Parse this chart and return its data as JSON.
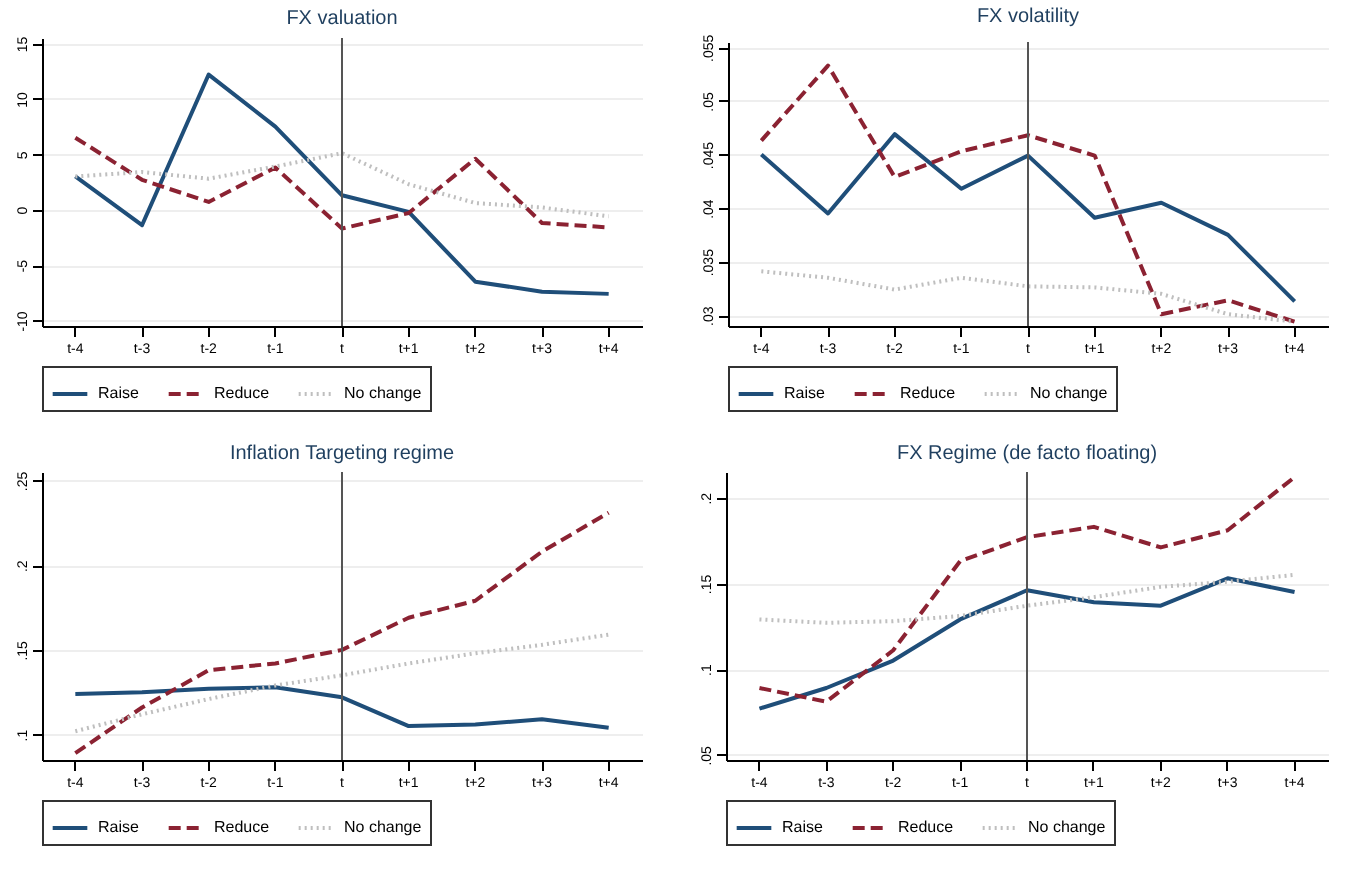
{
  "chart_data": [
    {
      "type": "line",
      "title": "FX valuation",
      "categories": [
        "t-4",
        "t-3",
        "t-2",
        "t-1",
        "t",
        "t+1",
        "t+2",
        "t+3",
        "t+4"
      ],
      "ylim": [
        -10.5,
        15.5
      ],
      "yticks": [
        -10,
        -5,
        0,
        5,
        10,
        15
      ],
      "grid": "y",
      "legend": "bottom",
      "ref_lines": [
        {
          "axis": "x",
          "value": "t",
          "color": "#555555"
        }
      ],
      "series": [
        {
          "name": "Raise",
          "color": "#1f4e79",
          "line_style": "solid",
          "values": [
            3.0,
            -1.4,
            12.2,
            7.5,
            1.3,
            -0.2,
            -6.5,
            -7.4,
            -7.6
          ]
        },
        {
          "name": "Reduce",
          "color": "#8b2232",
          "line_style": "dashed",
          "values": [
            6.5,
            2.7,
            0.7,
            3.8,
            -1.7,
            -0.3,
            4.6,
            -1.2,
            -1.6
          ]
        },
        {
          "name": "No change",
          "color": "#bfbfbf",
          "line_style": "dotted",
          "values": [
            3.0,
            3.4,
            2.8,
            3.9,
            5.1,
            2.3,
            0.6,
            0.2,
            -0.6
          ]
        }
      ]
    },
    {
      "type": "line",
      "title": "FX volatility",
      "categories": [
        "t-4",
        "t-3",
        "t-2",
        "t-1",
        "t",
        "t+1",
        "t+2",
        "t+3",
        "t+4"
      ],
      "ylim": [
        0.029,
        0.0555
      ],
      "yticks": [
        {
          "value": 0.03,
          "label": ".03"
        },
        {
          "value": 0.035,
          "label": ".035"
        },
        {
          "value": 0.04,
          "label": ".04"
        },
        {
          "value": 0.045,
          "label": ".045"
        },
        {
          "value": 0.05,
          "label": ".05"
        },
        {
          "value": 0.055,
          "label": ".055"
        }
      ],
      "grid": "y",
      "legend": "bottom",
      "ref_lines": [
        {
          "axis": "x",
          "value": "t",
          "color": "#555555"
        }
      ],
      "series": [
        {
          "name": "Raise",
          "color": "#1f4e79",
          "line_style": "solid",
          "values": [
            0.045,
            0.0395,
            0.0469,
            0.0418,
            0.0449,
            0.0391,
            0.0405,
            0.0375,
            0.0313
          ]
        },
        {
          "name": "Reduce",
          "color": "#8b2232",
          "line_style": "dashed",
          "values": [
            0.0463,
            0.0533,
            0.0429,
            0.0453,
            0.0468,
            0.0449,
            0.0301,
            0.0314,
            0.0294
          ]
        },
        {
          "name": "No change",
          "color": "#bfbfbf",
          "line_style": "dotted",
          "values": [
            0.0341,
            0.0335,
            0.0324,
            0.0335,
            0.0327,
            0.0326,
            0.032,
            0.0301,
            0.0294
          ]
        }
      ]
    },
    {
      "type": "line",
      "title": "Inflation Targeting regime",
      "categories": [
        "t-4",
        "t-3",
        "t-2",
        "t-1",
        "t",
        "t+1",
        "t+2",
        "t+3",
        "t+4"
      ],
      "ylim": [
        0.085,
        0.255
      ],
      "yticks": [
        {
          "value": 0.1,
          "label": ".1"
        },
        {
          "value": 0.15,
          "label": ".15"
        },
        {
          "value": 0.2,
          "label": ".2"
        },
        {
          "value": 0.25,
          "label": ".25"
        }
      ],
      "grid": "y",
      "legend": "bottom",
      "ref_lines": [
        {
          "axis": "x",
          "value": "t",
          "color": "#555555"
        }
      ],
      "series": [
        {
          "name": "Raise",
          "color": "#1f4e79",
          "line_style": "solid",
          "values": [
            0.124,
            0.125,
            0.127,
            0.128,
            0.122,
            0.105,
            0.106,
            0.109,
            0.104
          ]
        },
        {
          "name": "Reduce",
          "color": "#8b2232",
          "line_style": "dashed",
          "values": [
            0.089,
            0.116,
            0.138,
            0.142,
            0.15,
            0.169,
            0.179,
            0.208,
            0.231
          ]
        },
        {
          "name": "No change",
          "color": "#bfbfbf",
          "line_style": "dotted",
          "values": [
            0.102,
            0.112,
            0.121,
            0.129,
            0.135,
            0.142,
            0.148,
            0.153,
            0.159
          ]
        }
      ]
    },
    {
      "type": "line",
      "title": "FX Regime (de facto floating)",
      "categories": [
        "t-4",
        "t-3",
        "t-2",
        "t-1",
        "t",
        "t+1",
        "t+2",
        "t+3",
        "t+4"
      ],
      "ylim": [
        0.047,
        0.215
      ],
      "yticks": [
        {
          "value": 0.05,
          "label": ".05"
        },
        {
          "value": 0.1,
          "label": ".1"
        },
        {
          "value": 0.15,
          "label": ".15"
        },
        {
          "value": 0.2,
          "label": ".2"
        }
      ],
      "grid": "y",
      "legend": "bottom",
      "ref_lines": [
        {
          "axis": "x",
          "value": "t",
          "color": "#555555"
        }
      ],
      "series": [
        {
          "name": "Raise",
          "color": "#1f4e79",
          "line_style": "solid",
          "values": [
            0.077,
            0.089,
            0.105,
            0.129,
            0.146,
            0.139,
            0.137,
            0.153,
            0.145
          ]
        },
        {
          "name": "Reduce",
          "color": "#8b2232",
          "line_style": "dashed",
          "values": [
            0.089,
            0.081,
            0.111,
            0.163,
            0.177,
            0.183,
            0.171,
            0.181,
            0.212
          ]
        },
        {
          "name": "No change",
          "color": "#bfbfbf",
          "line_style": "dotted",
          "values": [
            0.129,
            0.127,
            0.128,
            0.131,
            0.137,
            0.142,
            0.148,
            0.151,
            0.155
          ]
        }
      ]
    }
  ]
}
